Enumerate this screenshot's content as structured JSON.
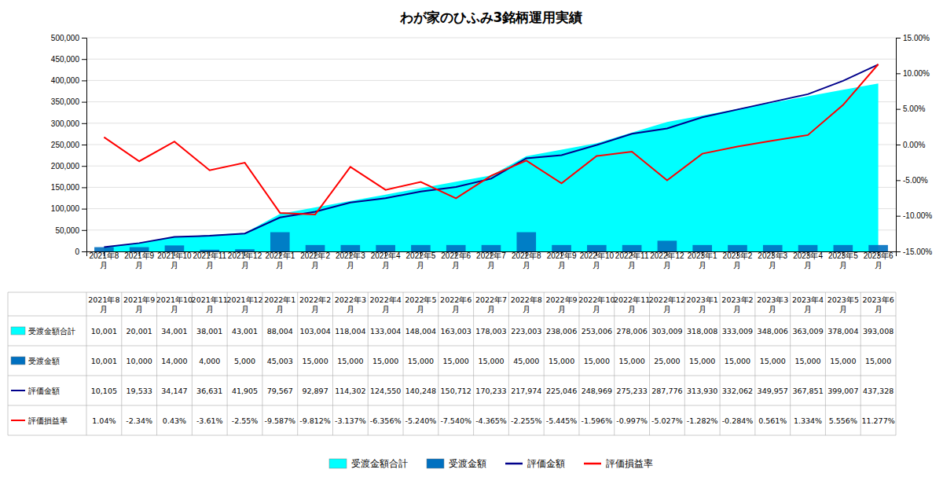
{
  "chart_data": {
    "type": "combo",
    "title": "わが家のひふみ3銘柄運用実績",
    "categories": [
      "2021年8月",
      "2021年9月",
      "2021年10月",
      "2021年11月",
      "2021年12月",
      "2022年1月",
      "2022年2月",
      "2022年3月",
      "2022年4月",
      "2022年5月",
      "2022年6月",
      "2022年7月",
      "2022年8月",
      "2022年9月",
      "2022年10月",
      "2022年11月",
      "2022年12月",
      "2023年1月",
      "2023年2月",
      "2023年3月",
      "2023年4月",
      "2023年5月",
      "2023年6月"
    ],
    "series": [
      {
        "name": "受渡金額合計",
        "type": "area",
        "color": "#00FFFF",
        "values": [
          10001,
          20001,
          34001,
          38001,
          43001,
          88004,
          103004,
          118004,
          133004,
          148004,
          163003,
          178003,
          223003,
          238006,
          253006,
          278006,
          303009,
          318008,
          333009,
          348006,
          363009,
          378004,
          393008
        ],
        "value_labels": [
          "10,001",
          "20,001",
          "34,001",
          "38,001",
          "43,001",
          "88,004",
          "103,004",
          "118,004",
          "133,004",
          "148,004",
          "163,003",
          "178,003",
          "223,003",
          "238,006",
          "253,006",
          "278,006",
          "303,009",
          "318,008",
          "333,009",
          "348,006",
          "363,009",
          "378,004",
          "393,008"
        ]
      },
      {
        "name": "受渡金額",
        "type": "bar",
        "color": "#0070C0",
        "values": [
          10001,
          10000,
          14000,
          4000,
          5000,
          45003,
          15000,
          15000,
          15000,
          15000,
          15000,
          15000,
          45000,
          15000,
          15000,
          15000,
          25000,
          15000,
          15000,
          15000,
          15000,
          15000,
          15000
        ],
        "value_labels": [
          "10,001",
          "10,000",
          "14,000",
          "4,000",
          "5,000",
          "45,003",
          "15,000",
          "15,000",
          "15,000",
          "15,000",
          "15,000",
          "15,000",
          "45,000",
          "15,000",
          "15,000",
          "15,000",
          "25,000",
          "15,000",
          "15,000",
          "15,000",
          "15,000",
          "15,000",
          "15,000"
        ]
      },
      {
        "name": "評価金額",
        "type": "line",
        "color": "#00008B",
        "values": [
          10105,
          19533,
          34147,
          36631,
          41905,
          79567,
          92897,
          114302,
          124550,
          140248,
          150712,
          170233,
          217974,
          225046,
          248969,
          275233,
          287776,
          313930,
          332062,
          349957,
          367851,
          399007,
          437328
        ],
        "value_labels": [
          "10,105",
          "19,533",
          "34,147",
          "36,631",
          "41,905",
          "79,567",
          "92,897",
          "114,302",
          "124,550",
          "140,248",
          "150,712",
          "170,233",
          "217,974",
          "225,046",
          "248,969",
          "275,233",
          "287,776",
          "313,930",
          "332,062",
          "349,957",
          "367,851",
          "399,007",
          "437,328"
        ]
      },
      {
        "name": "評価損益率",
        "type": "line",
        "color": "#FF0000",
        "axis": "y2",
        "values": [
          1.04,
          -2.34,
          0.43,
          -3.61,
          -2.55,
          -9.587,
          -9.812,
          -3.137,
          -6.356,
          -5.24,
          -7.54,
          -4.365,
          -2.255,
          -5.445,
          -1.596,
          -0.997,
          -5.027,
          -1.282,
          -0.284,
          0.561,
          1.334,
          5.556,
          11.277
        ],
        "value_labels": [
          "1.04%",
          "-2.34%",
          "0.43%",
          "-3.61%",
          "-2.55%",
          "-9.587%",
          "-9.812%",
          "-3.137%",
          "-6.356%",
          "-5.240%",
          "-7.540%",
          "-4.365%",
          "-2.255%",
          "-5.445%",
          "-1.596%",
          "-0.997%",
          "-5.027%",
          "-1.282%",
          "-0.284%",
          "0.561%",
          "1.334%",
          "5.556%",
          "11.277%"
        ]
      }
    ],
    "ylim": [
      0,
      500000
    ],
    "yticks": [
      0,
      {
        "value": 50000,
        "label": "50,000"
      },
      {
        "value": 100000,
        "label": "100,000"
      },
      {
        "value": 150000,
        "label": "150,000"
      },
      {
        "value": 200000,
        "label": "200,000"
      },
      {
        "value": 250000,
        "label": "250,000"
      },
      {
        "value": 300000,
        "label": "300,000"
      },
      {
        "value": 350000,
        "label": "350,000"
      },
      {
        "value": 400000,
        "label": "400,000"
      },
      {
        "value": 450000,
        "label": "450,000"
      },
      {
        "value": 500000,
        "label": "500,000"
      }
    ],
    "y2lim": [
      -15.0,
      15.0
    ],
    "y2ticks": [
      {
        "value": -15.0,
        "label": "-15.00%"
      },
      {
        "value": -10.0,
        "label": "-10.00%"
      },
      {
        "value": -5.0,
        "label": "-5.00%"
      },
      {
        "value": 0.0,
        "label": "0.00%"
      },
      {
        "value": 5.0,
        "label": "5.00%"
      },
      {
        "value": 10.0,
        "label": "10.00%"
      },
      {
        "value": 15.0,
        "label": "15.00%"
      }
    ],
    "grid": true,
    "legend": "bottom"
  }
}
